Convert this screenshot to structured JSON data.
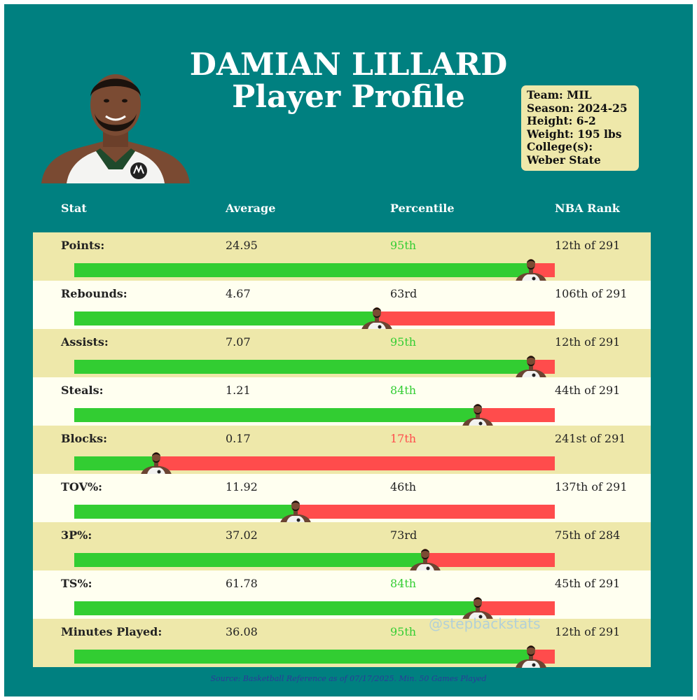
{
  "title": {
    "line1": "DAMIAN LILLARD",
    "line2": "Player Profile"
  },
  "info": {
    "team": "Team: MIL",
    "season": "Season: 2024-25",
    "height": "Height: 6-2",
    "weight": "Weight: 195 lbs",
    "college_label": "College(s):",
    "college": "Weber State"
  },
  "headers": {
    "stat": "Stat",
    "average": "Average",
    "percentile": "Percentile",
    "rank": "NBA Rank"
  },
  "colors": {
    "background": "#008080",
    "row_odd": "#eee8aa",
    "row_even": "#fffff0",
    "bar_good": "#32cd32",
    "bar_bad": "#ff4c4c",
    "pct_high": "#32cd32",
    "pct_low": "#ff4c4c",
    "pct_mid": "#222222"
  },
  "chart_data": {
    "type": "bar",
    "categories": [
      "Points:",
      "Rebounds:",
      "Assists:",
      "Steals:",
      "Blocks:",
      "TOV%:",
      "3P%:",
      "TS%:",
      "Minutes Played:"
    ],
    "averages": [
      "24.95",
      "4.67",
      "7.07",
      "1.21",
      "0.17",
      "11.92",
      "37.02",
      "61.78",
      "36.08"
    ],
    "percentile_labels": [
      "95th",
      "63rd",
      "95th",
      "84th",
      "17th",
      "46th",
      "73rd",
      "84th",
      "95th"
    ],
    "percentiles": [
      95,
      63,
      95,
      84,
      17,
      46,
      73,
      84,
      95
    ],
    "ranks": [
      "12th of 291",
      "106th of 291",
      "12th of 291",
      "44th of 291",
      "241st of 291",
      "137th of 291",
      "75th of 284",
      "45th of 291",
      "12th of 291"
    ],
    "xlim": [
      0,
      100
    ]
  },
  "watermark": "@stepbackstats",
  "source": "Source: Basketball Reference as of 07/17/2025. Min. 50 Games Played"
}
